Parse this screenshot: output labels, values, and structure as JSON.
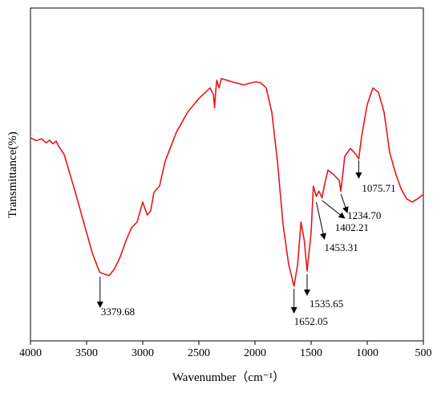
{
  "chart_data": {
    "type": "line",
    "x_label": "Wavenumber（cm⁻¹）",
    "y_label": "Transmittance(%)",
    "xlim": [
      4000,
      500
    ],
    "ylim": [
      0,
      100
    ],
    "xticks": [
      4000,
      3500,
      3000,
      2500,
      2000,
      1500,
      1000,
      500
    ],
    "series": [
      {
        "color": "#e8141b",
        "x": [
          4000,
          3950,
          3900,
          3860,
          3830,
          3800,
          3770,
          3750,
          3700,
          3600,
          3500,
          3450,
          3400,
          3379.68,
          3300,
          3250,
          3200,
          3150,
          3100,
          3050,
          3000,
          2960,
          2930,
          2900,
          2850,
          2800,
          2700,
          2600,
          2500,
          2400,
          2370,
          2360,
          2350,
          2340,
          2320,
          2300,
          2200,
          2100,
          2000,
          1950,
          1900,
          1850,
          1800,
          1750,
          1700,
          1652.05,
          1620,
          1590,
          1560,
          1535.65,
          1500,
          1480,
          1453.31,
          1430,
          1402.21,
          1380,
          1350,
          1300,
          1250,
          1234.7,
          1200,
          1150,
          1100,
          1075.71,
          1050,
          1000,
          950,
          900,
          850,
          800,
          750,
          700,
          650,
          600,
          550,
          500
        ],
        "values": [
          61,
          60.2,
          60.7,
          59.5,
          60.3,
          59.2,
          60,
          58.5,
          56,
          44.6,
          32.5,
          26.5,
          22,
          20.5,
          19.6,
          21.7,
          25.3,
          30,
          34,
          35.7,
          41.7,
          37.8,
          39,
          44.6,
          46.5,
          54,
          62.7,
          68.7,
          72.8,
          76,
          74,
          70,
          75,
          78.3,
          76,
          78.8,
          77.8,
          76.9,
          77.8,
          77.6,
          76,
          68.7,
          54,
          35,
          23,
          16.4,
          23,
          35.7,
          30,
          21,
          32.5,
          46.5,
          43.4,
          45,
          43,
          47,
          51.3,
          50,
          48.2,
          45,
          55.4,
          57.8,
          56,
          54.7,
          61.4,
          71,
          76,
          74.7,
          68.7,
          56.6,
          50.6,
          45.8,
          42.7,
          41.7,
          42.7,
          44
        ]
      }
    ],
    "annotations": [
      {
        "x": 3379.68,
        "label": "3379.68"
      },
      {
        "x": 1652.05,
        "label": "1652.05"
      },
      {
        "x": 1535.65,
        "label": "1535.65"
      },
      {
        "x": 1453.31,
        "label": "1453.31"
      },
      {
        "x": 1402.21,
        "label": "1402.21"
      },
      {
        "x": 1234.7,
        "label": "1234.70"
      },
      {
        "x": 1075.71,
        "label": "1075.71"
      }
    ]
  }
}
